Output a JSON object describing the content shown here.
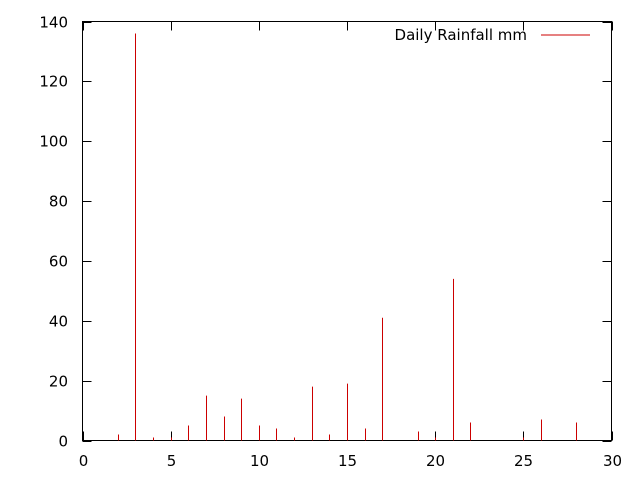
{
  "chart_data": {
    "type": "impulse",
    "title": "",
    "xlabel": "",
    "ylabel": "",
    "xlim": [
      0,
      30
    ],
    "ylim": [
      0,
      140
    ],
    "x_ticks": [
      0,
      5,
      10,
      15,
      20,
      25,
      30
    ],
    "y_ticks": [
      0,
      20,
      40,
      60,
      80,
      100,
      120,
      140
    ],
    "grid": false,
    "legend_position": "top-right",
    "series": [
      {
        "name": "Daily Rainfall mm",
        "color": "#cc0000",
        "points": [
          {
            "x": 2,
            "y": 2
          },
          {
            "x": 3,
            "y": 136
          },
          {
            "x": 4,
            "y": 1
          },
          {
            "x": 5,
            "y": 1
          },
          {
            "x": 6,
            "y": 5
          },
          {
            "x": 7,
            "y": 15
          },
          {
            "x": 8,
            "y": 8
          },
          {
            "x": 9,
            "y": 14
          },
          {
            "x": 10,
            "y": 5
          },
          {
            "x": 11,
            "y": 4
          },
          {
            "x": 12,
            "y": 1
          },
          {
            "x": 13,
            "y": 18
          },
          {
            "x": 14,
            "y": 2
          },
          {
            "x": 15,
            "y": 19
          },
          {
            "x": 16,
            "y": 4
          },
          {
            "x": 17,
            "y": 41
          },
          {
            "x": 19,
            "y": 3
          },
          {
            "x": 20,
            "y": 1
          },
          {
            "x": 21,
            "y": 54
          },
          {
            "x": 22,
            "y": 6
          },
          {
            "x": 25,
            "y": 1
          },
          {
            "x": 26,
            "y": 7
          },
          {
            "x": 28,
            "y": 6
          }
        ]
      }
    ]
  }
}
